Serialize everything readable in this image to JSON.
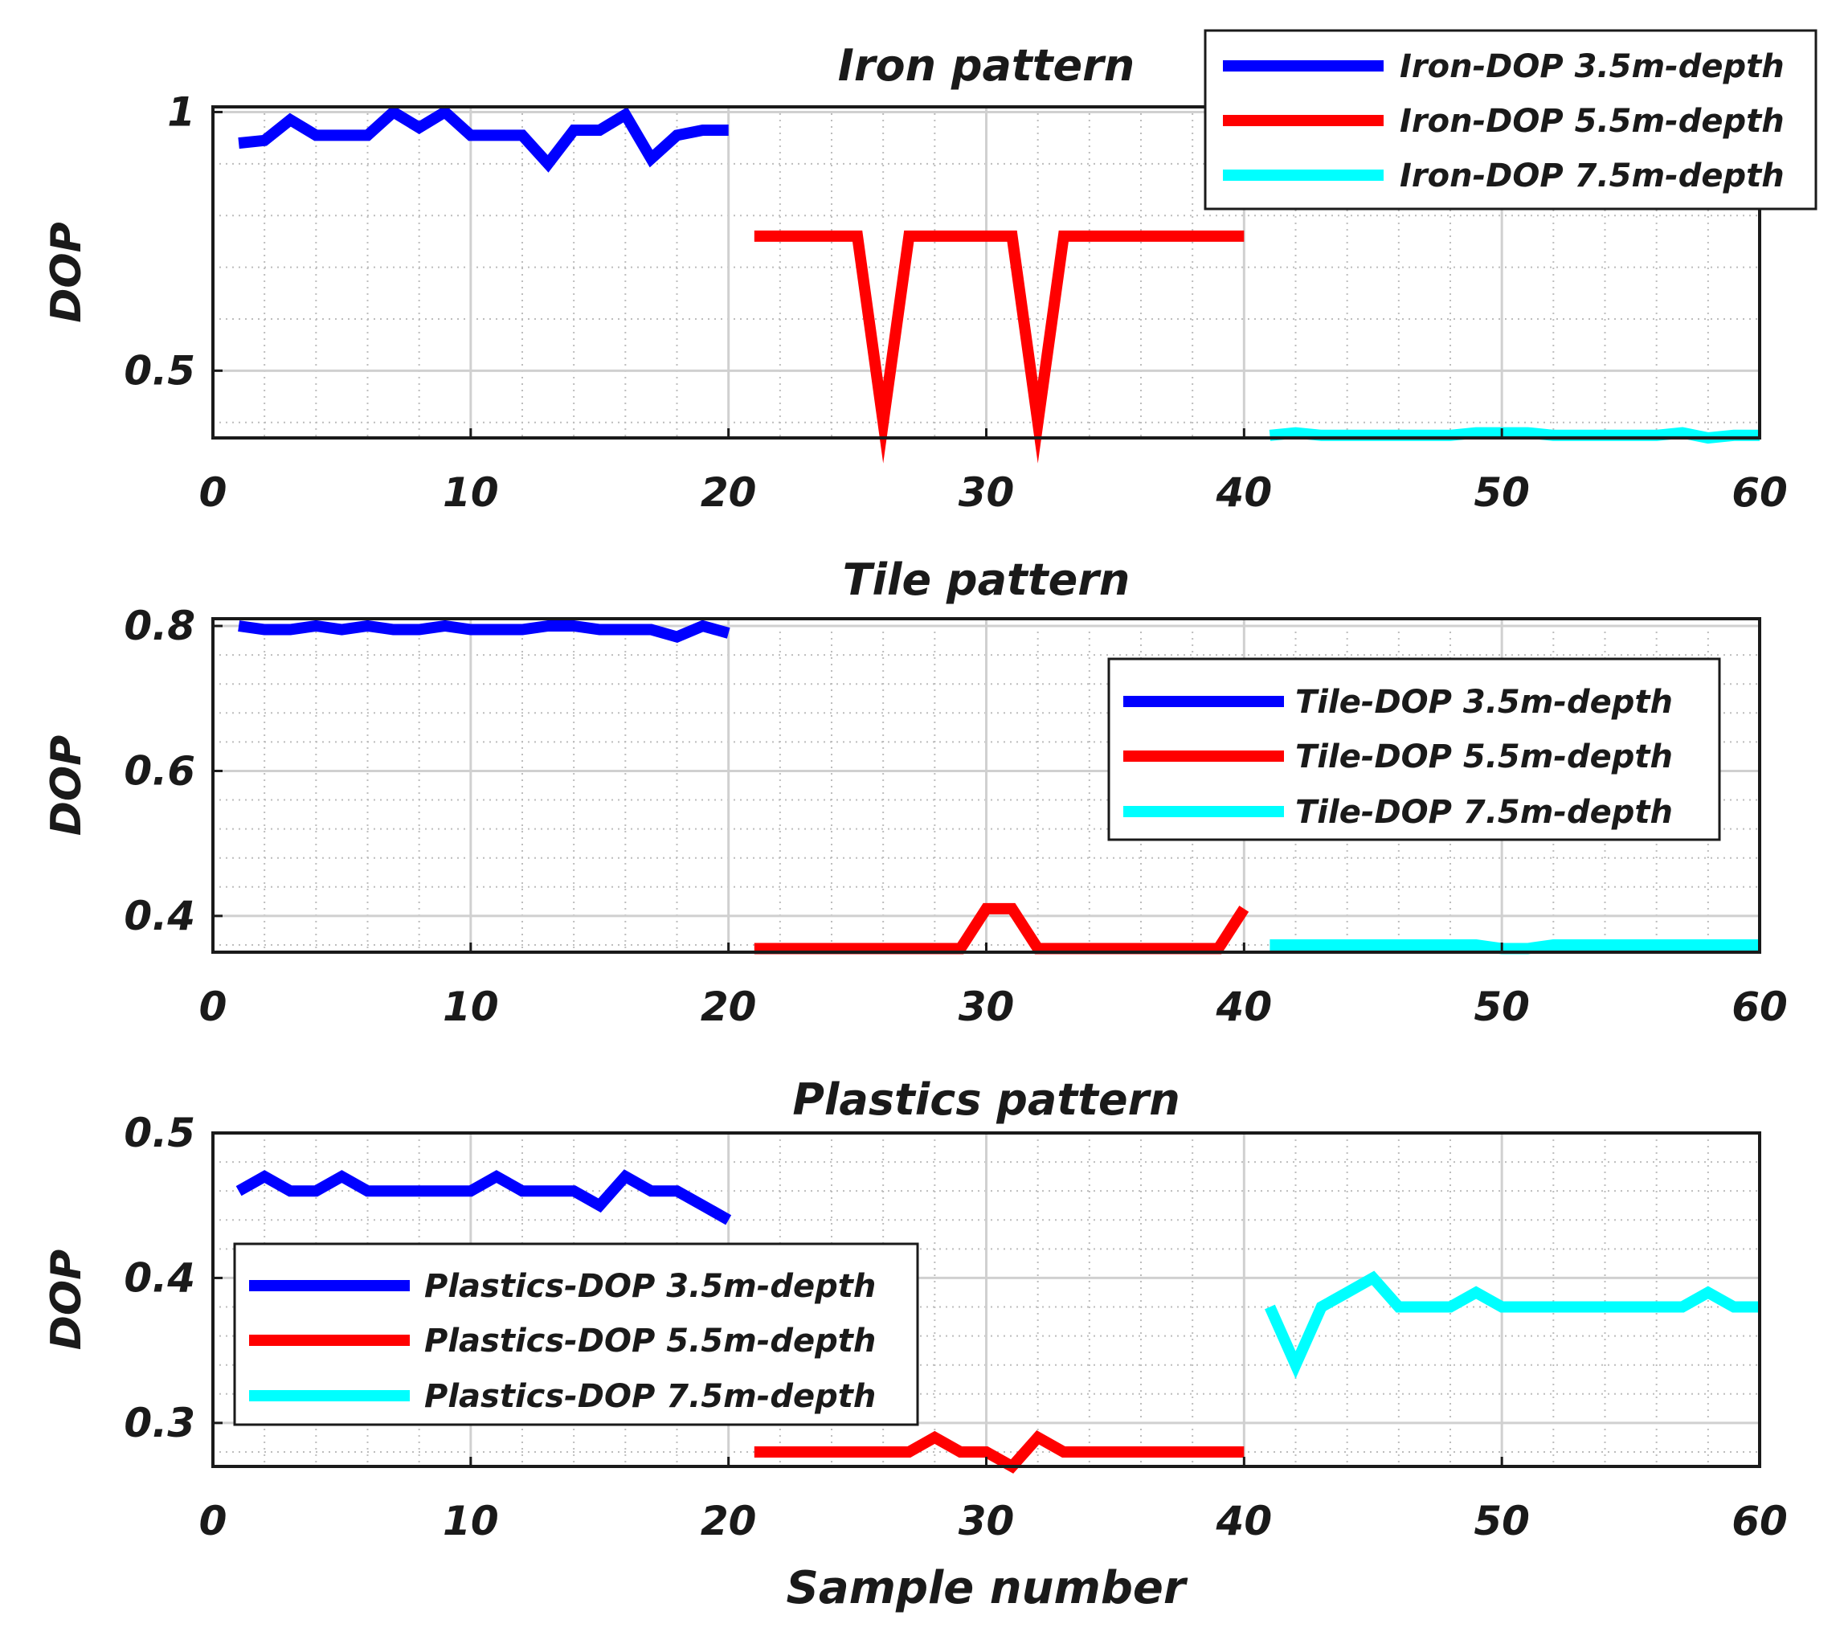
{
  "colors": {
    "series_3_5": "#0000ff",
    "series_5_5": "#ff0000",
    "series_7_5": "#00ffff",
    "axes": "#1a1a1a",
    "grid_major": "#d0d0d0",
    "grid_minor": "#bdbdbd"
  },
  "chart_data": [
    {
      "type": "line",
      "title": "Iron pattern",
      "xlabel": "",
      "ylabel": "DOP",
      "xlim": [
        0,
        60
      ],
      "ylim": [
        0.37,
        1.01
      ],
      "xticks": [
        0,
        10,
        20,
        30,
        40,
        50,
        60
      ],
      "xtick_labels": [
        "0",
        "10",
        "20",
        "30",
        "40",
        "50",
        "60"
      ],
      "yticks": [
        0.5,
        1
      ],
      "ytick_labels": [
        "0.5",
        "1"
      ],
      "grid": true,
      "legend_position": "top-right",
      "series": [
        {
          "name": "Iron-DOP 3.5m-depth",
          "x": [
            1,
            2,
            3,
            4,
            5,
            6,
            7,
            8,
            9,
            10,
            11,
            12,
            13,
            14,
            15,
            16,
            17,
            18,
            19,
            20
          ],
          "values": [
            0.94,
            0.945,
            0.985,
            0.955,
            0.955,
            0.955,
            1.0,
            0.97,
            1.0,
            0.955,
            0.955,
            0.955,
            0.9,
            0.965,
            0.965,
            0.995,
            0.91,
            0.955,
            0.965,
            0.965
          ]
        },
        {
          "name": "Iron-DOP 5.5m-depth",
          "x": [
            21,
            22,
            23,
            24,
            25,
            26,
            27,
            28,
            29,
            30,
            31,
            32,
            33,
            34,
            35,
            36,
            37,
            38,
            39,
            40
          ],
          "values": [
            0.76,
            0.76,
            0.76,
            0.76,
            0.76,
            0.4,
            0.76,
            0.76,
            0.76,
            0.76,
            0.76,
            0.4,
            0.76,
            0.76,
            0.76,
            0.76,
            0.76,
            0.76,
            0.76,
            0.76
          ]
        },
        {
          "name": "Iron-DOP 7.5m-depth",
          "x": [
            41,
            42,
            43,
            44,
            45,
            46,
            47,
            48,
            49,
            50,
            51,
            52,
            53,
            54,
            55,
            56,
            57,
            58,
            59,
            60
          ],
          "values": [
            0.375,
            0.38,
            0.375,
            0.375,
            0.375,
            0.375,
            0.375,
            0.375,
            0.38,
            0.38,
            0.38,
            0.375,
            0.375,
            0.375,
            0.375,
            0.375,
            0.38,
            0.37,
            0.375,
            0.375
          ]
        }
      ]
    },
    {
      "type": "line",
      "title": "Tile pattern",
      "xlabel": "",
      "ylabel": "DOP",
      "xlim": [
        0,
        60
      ],
      "ylim": [
        0.35,
        0.81
      ],
      "xticks": [
        0,
        10,
        20,
        30,
        40,
        50,
        60
      ],
      "xtick_labels": [
        "0",
        "10",
        "20",
        "30",
        "40",
        "50",
        "60"
      ],
      "yticks": [
        0.4,
        0.6,
        0.8
      ],
      "ytick_labels": [
        "0.4",
        "0.6",
        "0.8"
      ],
      "grid": true,
      "legend_position": "center-right",
      "series": [
        {
          "name": "Tile-DOP 3.5m-depth",
          "x": [
            1,
            2,
            3,
            4,
            5,
            6,
            7,
            8,
            9,
            10,
            11,
            12,
            13,
            14,
            15,
            16,
            17,
            18,
            19,
            20
          ],
          "values": [
            0.8,
            0.795,
            0.795,
            0.8,
            0.795,
            0.8,
            0.795,
            0.795,
            0.8,
            0.795,
            0.795,
            0.795,
            0.8,
            0.8,
            0.795,
            0.795,
            0.795,
            0.785,
            0.8,
            0.79
          ]
        },
        {
          "name": "Tile-DOP 5.5m-depth",
          "x": [
            21,
            22,
            23,
            24,
            25,
            26,
            27,
            28,
            29,
            30,
            31,
            32,
            33,
            34,
            35,
            36,
            37,
            38,
            39,
            40
          ],
          "values": [
            0.355,
            0.355,
            0.355,
            0.355,
            0.355,
            0.355,
            0.355,
            0.355,
            0.355,
            0.41,
            0.41,
            0.355,
            0.355,
            0.355,
            0.355,
            0.355,
            0.355,
            0.355,
            0.355,
            0.41
          ]
        },
        {
          "name": "Tile-DOP 7.5m-depth",
          "x": [
            41,
            42,
            43,
            44,
            45,
            46,
            47,
            48,
            49,
            50,
            51,
            52,
            53,
            54,
            55,
            56,
            57,
            58,
            59,
            60
          ],
          "values": [
            0.36,
            0.36,
            0.36,
            0.36,
            0.36,
            0.36,
            0.36,
            0.36,
            0.36,
            0.355,
            0.355,
            0.36,
            0.36,
            0.36,
            0.36,
            0.36,
            0.36,
            0.36,
            0.36,
            0.36
          ]
        }
      ]
    },
    {
      "type": "line",
      "title": "Plastics pattern",
      "xlabel": "Sample number",
      "ylabel": "DOP",
      "xlim": [
        0,
        60
      ],
      "ylim": [
        0.27,
        0.5
      ],
      "xticks": [
        0,
        10,
        20,
        30,
        40,
        50,
        60
      ],
      "xtick_labels": [
        "0",
        "10",
        "20",
        "30",
        "40",
        "50",
        "60"
      ],
      "yticks": [
        0.3,
        0.4,
        0.5
      ],
      "ytick_labels": [
        "0.3",
        "0.4",
        "0.5"
      ],
      "grid": true,
      "legend_position": "bottom-left",
      "series": [
        {
          "name": "Plastics-DOP 3.5m-depth",
          "x": [
            1,
            2,
            3,
            4,
            5,
            6,
            7,
            8,
            9,
            10,
            11,
            12,
            13,
            14,
            15,
            16,
            17,
            18,
            19,
            20
          ],
          "values": [
            0.46,
            0.47,
            0.46,
            0.46,
            0.47,
            0.46,
            0.46,
            0.46,
            0.46,
            0.46,
            0.47,
            0.46,
            0.46,
            0.46,
            0.45,
            0.47,
            0.46,
            0.46,
            0.45,
            0.44
          ]
        },
        {
          "name": "Plastics-DOP 5.5m-depth",
          "x": [
            21,
            22,
            23,
            24,
            25,
            26,
            27,
            28,
            29,
            30,
            31,
            32,
            33,
            34,
            35,
            36,
            37,
            38,
            39,
            40
          ],
          "values": [
            0.28,
            0.28,
            0.28,
            0.28,
            0.28,
            0.28,
            0.28,
            0.29,
            0.28,
            0.28,
            0.27,
            0.29,
            0.28,
            0.28,
            0.28,
            0.28,
            0.28,
            0.28,
            0.28,
            0.28
          ]
        },
        {
          "name": "Plastics-DOP 7.5m-depth",
          "x": [
            41,
            42,
            43,
            44,
            45,
            46,
            47,
            48,
            49,
            50,
            51,
            52,
            53,
            54,
            55,
            56,
            57,
            58,
            59,
            60
          ],
          "values": [
            0.38,
            0.34,
            0.38,
            0.39,
            0.4,
            0.38,
            0.38,
            0.38,
            0.39,
            0.38,
            0.38,
            0.38,
            0.38,
            0.38,
            0.38,
            0.38,
            0.38,
            0.39,
            0.38,
            0.38
          ]
        }
      ]
    }
  ]
}
